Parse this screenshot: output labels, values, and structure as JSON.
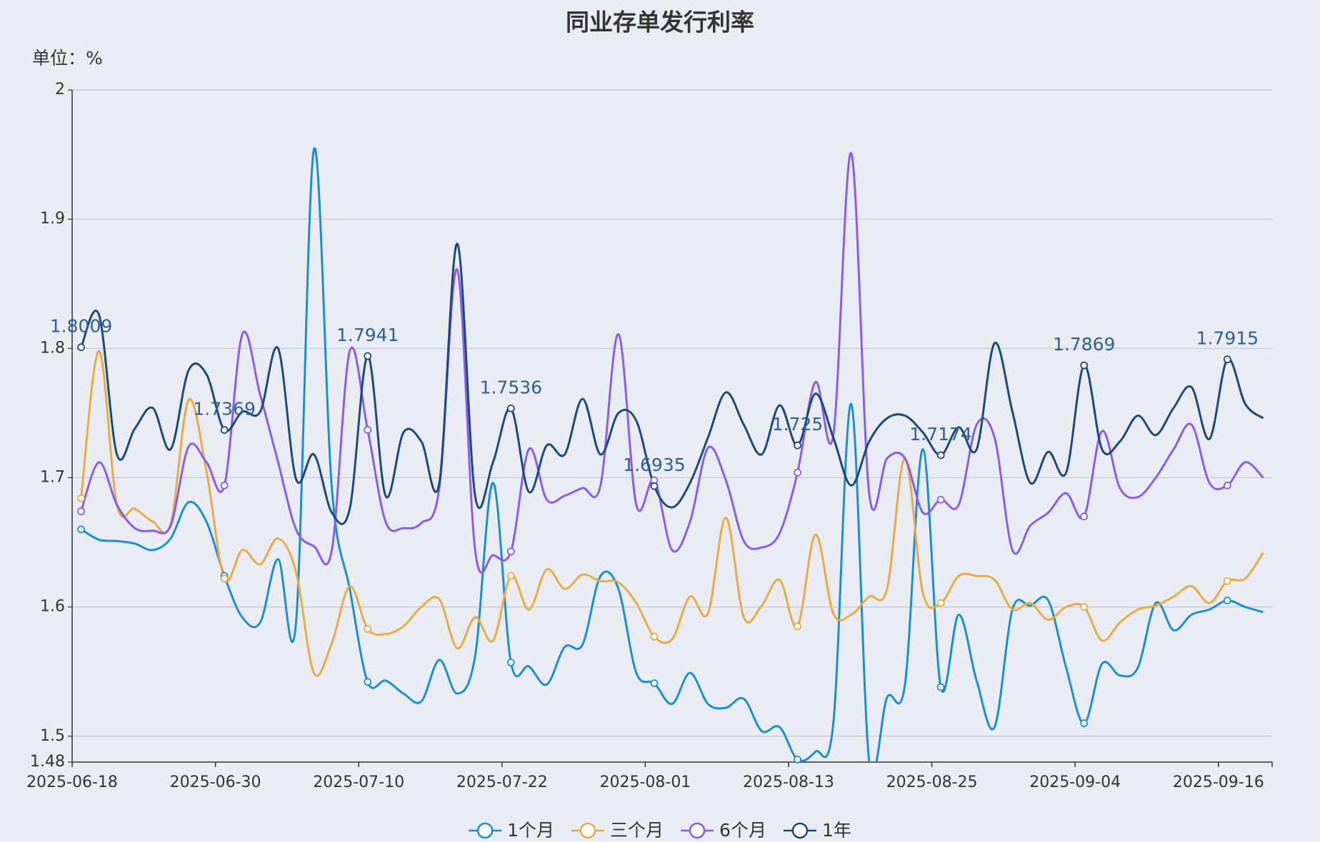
{
  "chart_data": {
    "type": "line",
    "title": "同业存单发行利率",
    "unit_label": "单位：%",
    "categories": [
      "2025-06-18",
      null,
      null,
      null,
      null,
      null,
      null,
      null,
      "2025-06-30",
      null,
      null,
      null,
      null,
      null,
      null,
      null,
      "2025-07-10",
      null,
      null,
      null,
      null,
      null,
      null,
      null,
      "2025-07-22",
      null,
      null,
      null,
      null,
      null,
      null,
      null,
      "2025-08-01",
      null,
      null,
      null,
      null,
      null,
      null,
      null,
      "2025-08-13",
      null,
      null,
      null,
      null,
      null,
      null,
      null,
      "2025-08-25",
      null,
      null,
      null,
      null,
      null,
      null,
      null,
      "2025-09-04",
      null,
      null,
      null,
      null,
      null,
      null,
      null,
      "2025-09-16",
      null,
      null
    ],
    "ylim": [
      1.48,
      2
    ],
    "yticks": [
      1.48,
      1.5,
      1.6,
      1.7,
      1.8,
      1.9,
      2
    ],
    "grid": true,
    "smooth": true,
    "legend": "bottom",
    "series": [
      {
        "name": "1个月",
        "color": "#1b8fd0",
        "values": [
          1.66,
          1.652,
          1.651,
          1.649,
          1.644,
          1.653,
          1.681,
          1.666,
          1.624,
          1.592,
          1.588,
          1.637,
          1.588,
          1.954,
          1.692,
          1.614,
          1.542,
          1.543,
          1.533,
          1.527,
          1.559,
          1.533,
          1.562,
          1.696,
          1.557,
          1.554,
          1.54,
          1.569,
          1.571,
          1.624,
          1.614,
          1.549,
          1.541,
          1.525,
          1.549,
          1.525,
          1.522,
          1.529,
          1.504,
          1.507,
          1.482,
          1.488,
          1.51,
          1.757,
          1.481,
          1.53,
          1.54,
          1.722,
          1.538,
          1.594,
          1.543,
          1.507,
          1.598,
          1.601,
          1.605,
          1.553,
          1.51,
          1.556,
          1.547,
          1.553,
          1.603,
          1.582,
          1.594,
          1.598,
          1.605,
          1.6,
          1.596
        ]
      },
      {
        "name": "三个月",
        "color": "#e8ac46",
        "values": [
          1.684,
          1.798,
          1.679,
          1.676,
          1.666,
          1.664,
          1.76,
          1.705,
          1.622,
          1.644,
          1.633,
          1.653,
          1.627,
          1.549,
          1.572,
          1.616,
          1.583,
          1.579,
          1.585,
          1.6,
          1.606,
          1.568,
          1.592,
          1.574,
          1.624,
          1.598,
          1.629,
          1.614,
          1.625,
          1.62,
          1.619,
          1.603,
          1.577,
          1.575,
          1.608,
          1.595,
          1.669,
          1.592,
          1.601,
          1.621,
          1.585,
          1.656,
          1.595,
          1.594,
          1.608,
          1.614,
          1.715,
          1.611,
          1.603,
          1.624,
          1.624,
          1.621,
          1.598,
          1.603,
          1.59,
          1.6,
          1.6,
          1.574,
          1.588,
          1.598,
          1.601,
          1.608,
          1.616,
          1.603,
          1.62,
          1.622,
          1.642
        ]
      },
      {
        "name": "6个月",
        "color": "#8a5cf0",
        "values": [
          1.674,
          1.712,
          1.679,
          1.661,
          1.659,
          1.663,
          1.724,
          1.712,
          1.694,
          1.811,
          1.764,
          1.712,
          1.66,
          1.647,
          1.644,
          1.798,
          1.737,
          1.666,
          1.661,
          1.665,
          1.692,
          1.861,
          1.644,
          1.64,
          1.643,
          1.722,
          1.683,
          1.686,
          1.692,
          1.694,
          1.811,
          1.679,
          1.698,
          1.644,
          1.666,
          1.723,
          1.698,
          1.651,
          1.646,
          1.657,
          1.704,
          1.774,
          1.733,
          1.951,
          1.688,
          1.715,
          1.715,
          1.673,
          1.683,
          1.679,
          1.741,
          1.731,
          1.644,
          1.663,
          1.673,
          1.688,
          1.67,
          1.736,
          1.692,
          1.685,
          1.7,
          1.722,
          1.741,
          1.696,
          1.694,
          1.712,
          1.7
        ]
      },
      {
        "name": "1年",
        "color": "#1d4a7a",
        "label_color": "#2e5f95",
        "values": [
          1.8009,
          1.826,
          1.718,
          1.738,
          1.754,
          1.722,
          1.783,
          1.78,
          1.7369,
          1.751,
          1.751,
          1.8,
          1.699,
          1.718,
          1.673,
          1.676,
          1.7941,
          1.686,
          1.735,
          1.728,
          1.696,
          1.881,
          1.686,
          1.712,
          1.7536,
          1.689,
          1.725,
          1.718,
          1.761,
          1.718,
          1.75,
          1.744,
          1.6935,
          1.677,
          1.696,
          1.731,
          1.766,
          1.741,
          1.718,
          1.756,
          1.725,
          1.765,
          1.731,
          1.694,
          1.728,
          1.746,
          1.748,
          1.735,
          1.7174,
          1.739,
          1.722,
          1.804,
          1.751,
          1.696,
          1.72,
          1.704,
          1.7869,
          1.722,
          1.728,
          1.748,
          1.733,
          1.754,
          1.77,
          1.73,
          1.7915,
          1.757,
          1.746
        ],
        "show_labels": true
      }
    ]
  }
}
